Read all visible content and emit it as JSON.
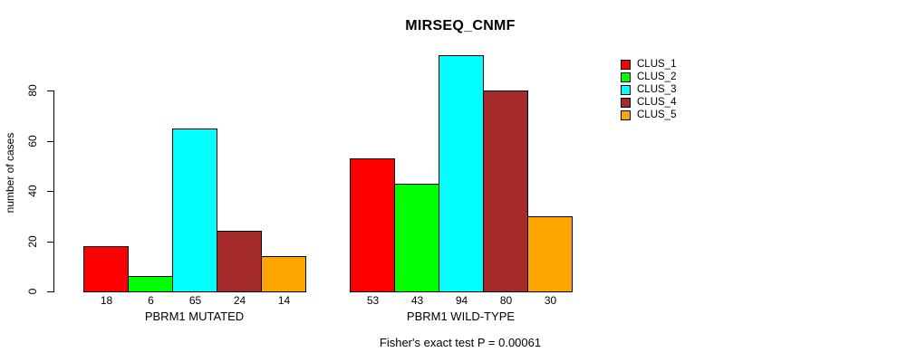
{
  "title": "MIRSEQ_CNMF",
  "chart_data": {
    "type": "bar",
    "title": "MIRSEQ_CNMF",
    "ylabel": "number of cases",
    "xlabel": "",
    "yticks": [
      0,
      20,
      40,
      60,
      80
    ],
    "ylim": [
      0,
      94
    ],
    "grid": false,
    "legend_position": "top-right",
    "series_names": [
      "CLUS_1",
      "CLUS_2",
      "CLUS_3",
      "CLUS_4",
      "CLUS_5"
    ],
    "series_colors": [
      "#FF0000",
      "#00FF00",
      "#00FFFF",
      "#A52A2A",
      "#FFA500"
    ],
    "groups": [
      {
        "label": "PBRM1 MUTATED",
        "values": [
          18,
          6,
          65,
          24,
          14
        ]
      },
      {
        "label": "PBRM1 WILD-TYPE",
        "values": [
          53,
          43,
          94,
          80,
          30
        ]
      }
    ],
    "bar_value_labels_shown": true,
    "footnote": "Fisher's exact test P = 0.00061"
  },
  "legend": {
    "items": [
      {
        "label": "CLUS_1",
        "color": "#FF0000"
      },
      {
        "label": "CLUS_2",
        "color": "#00FF00"
      },
      {
        "label": "CLUS_3",
        "color": "#00FFFF"
      },
      {
        "label": "CLUS_4",
        "color": "#A52A2A"
      },
      {
        "label": "CLUS_5",
        "color": "#FFA500"
      }
    ]
  }
}
